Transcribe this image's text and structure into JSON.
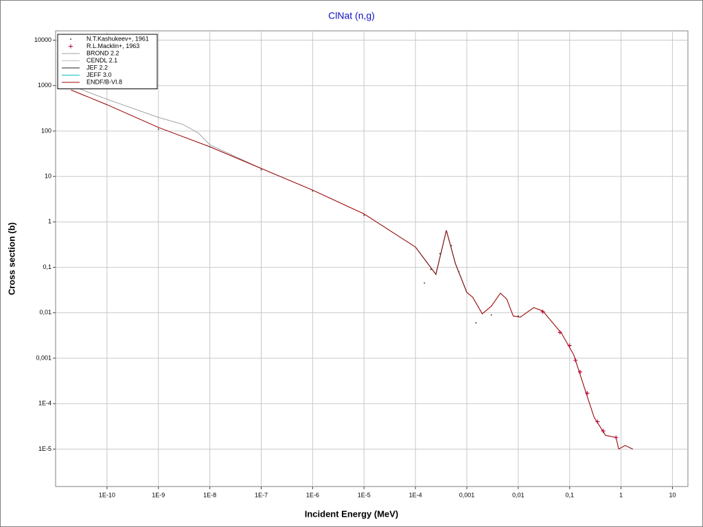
{
  "chart_data": {
    "type": "line",
    "title": "ClNat (n,g)",
    "x_label": "Incident Energy (MeV)",
    "y_label": "Cross section (b)",
    "log_x": true,
    "log_y": true,
    "grid": true,
    "legend": "top-left",
    "xlim": [
      1e-11,
      20
    ],
    "ylim": [
      1.5e-06,
      16000
    ],
    "xticks": [
      {
        "value": 1e-10,
        "label": "1E-10"
      },
      {
        "value": 1e-09,
        "label": "1E-9"
      },
      {
        "value": 1e-08,
        "label": "1E-8"
      },
      {
        "value": 1e-07,
        "label": "1E-7"
      },
      {
        "value": 1e-06,
        "label": "1E-6"
      },
      {
        "value": 1e-05,
        "label": "1E-5"
      },
      {
        "value": 0.0001,
        "label": "1E-4"
      },
      {
        "value": 0.001,
        "label": "0,001"
      },
      {
        "value": 0.01,
        "label": "0,01"
      },
      {
        "value": 0.1,
        "label": "0,1"
      },
      1,
      10
    ],
    "yticks": [
      {
        "value": 1e-05,
        "label": "1E-5"
      },
      {
        "value": 0.0001,
        "label": "1E-4"
      },
      {
        "value": 0.001,
        "label": "0,001"
      },
      {
        "value": 0.01,
        "label": "0,01"
      },
      {
        "value": 0.1,
        "label": "0,1"
      },
      1,
      10,
      100,
      1000,
      10000
    ],
    "series": [
      {
        "name": "N.T.Kashukeev+, 1961",
        "mode": "dot",
        "color": "#404040",
        "x": [
          1e-09,
          1e-08,
          1e-07,
          1e-06,
          1e-05,
          0.00015,
          0.0002,
          0.0003,
          0.0005,
          0.0007,
          0.0015,
          0.003,
          0.01
        ],
        "values": [
          110,
          45,
          14,
          4.8,
          1.4,
          0.045,
          0.09,
          0.2,
          0.3,
          0.08,
          0.006,
          0.009,
          0.0085
        ]
      },
      {
        "name": "R.L.Macklin+, 1963",
        "mode": "plus",
        "color": "#c00040",
        "x": [
          0.03,
          0.065,
          0.1,
          0.13,
          0.16,
          0.22,
          0.35,
          0.45,
          0.8
        ],
        "values": [
          0.0105,
          0.0037,
          0.0019,
          0.0009,
          0.0005,
          0.00017,
          4e-05,
          2.5e-05,
          1.8e-05
        ]
      },
      {
        "name": "BROND 2.2",
        "mode": "line",
        "color": "#a0a0a0",
        "x": [
          2e-11,
          1e-10,
          1e-09,
          3e-09,
          6e-09,
          1e-08,
          1e-07,
          1e-06,
          1e-05,
          0.0001,
          0.00025,
          0.0004,
          0.0006,
          0.001,
          0.0013,
          0.002,
          0.003,
          0.0045,
          0.006,
          0.008,
          0.011,
          0.02,
          0.03,
          0.07,
          0.12,
          0.2,
          0.3,
          0.5,
          0.8,
          0.9,
          1.2,
          1.7
        ],
        "values": [
          1000,
          500,
          200,
          140,
          90,
          50,
          15,
          5,
          1.5,
          0.28,
          0.07,
          0.65,
          0.12,
          0.028,
          0.022,
          0.0095,
          0.014,
          0.027,
          0.02,
          0.0085,
          0.008,
          0.013,
          0.011,
          0.0035,
          0.0012,
          0.0002,
          5e-05,
          2e-05,
          1.8e-05,
          1e-05,
          1.2e-05,
          1e-05
        ]
      },
      {
        "name": "CENDL 2.1",
        "mode": "line",
        "color": "#c0c0c0",
        "x": [
          2e-11,
          1e-10,
          1e-09,
          1e-08,
          1e-07,
          1e-06,
          1e-05,
          0.0001,
          0.00025,
          0.0004,
          0.0006,
          0.001,
          0.0013,
          0.002,
          0.003,
          0.0045,
          0.006,
          0.008,
          0.011,
          0.02,
          0.03,
          0.07,
          0.12,
          0.2,
          0.3,
          0.5,
          0.8,
          0.9,
          1.2,
          1.7
        ],
        "values": [
          800,
          380,
          120,
          45,
          15,
          5,
          1.5,
          0.28,
          0.07,
          0.65,
          0.12,
          0.028,
          0.022,
          0.0095,
          0.014,
          0.027,
          0.02,
          0.0085,
          0.008,
          0.013,
          0.011,
          0.0035,
          0.0012,
          0.0002,
          5e-05,
          2e-05,
          1.8e-05,
          1e-05,
          1.2e-05,
          1e-05
        ]
      },
      {
        "name": "JEF 2.2",
        "mode": "line",
        "color": "#202020",
        "x": [
          0.0001,
          0.00025,
          0.0004,
          0.0006,
          0.001
        ],
        "values": [
          0.28,
          0.07,
          0.65,
          0.12,
          0.028
        ]
      },
      {
        "name": "JEFF 3.0",
        "mode": "line",
        "color": "#00c0c0",
        "x": [
          0.0001,
          0.00025,
          0.0004,
          0.0006,
          0.001
        ],
        "values": [
          0.28,
          0.07,
          0.65,
          0.12,
          0.028
        ]
      },
      {
        "name": "ENDF/B-VI.8",
        "mode": "line",
        "color": "#a00000",
        "x": [
          2e-11,
          1e-10,
          1e-09,
          1e-08,
          1e-07,
          1e-06,
          1e-05,
          0.0001,
          0.00025,
          0.0004,
          0.0006,
          0.001,
          0.0013,
          0.002,
          0.003,
          0.0045,
          0.006,
          0.008,
          0.011,
          0.02,
          0.03,
          0.07,
          0.12,
          0.2,
          0.3,
          0.5,
          0.8,
          0.9,
          1.2,
          1.7
        ],
        "values": [
          800,
          380,
          120,
          45,
          15,
          5,
          1.5,
          0.28,
          0.07,
          0.65,
          0.12,
          0.028,
          0.022,
          0.0095,
          0.014,
          0.027,
          0.02,
          0.0085,
          0.008,
          0.013,
          0.011,
          0.0035,
          0.0012,
          0.0002,
          5e-05,
          2e-05,
          1.8e-05,
          1e-05,
          1.2e-05,
          1e-05
        ]
      }
    ]
  }
}
